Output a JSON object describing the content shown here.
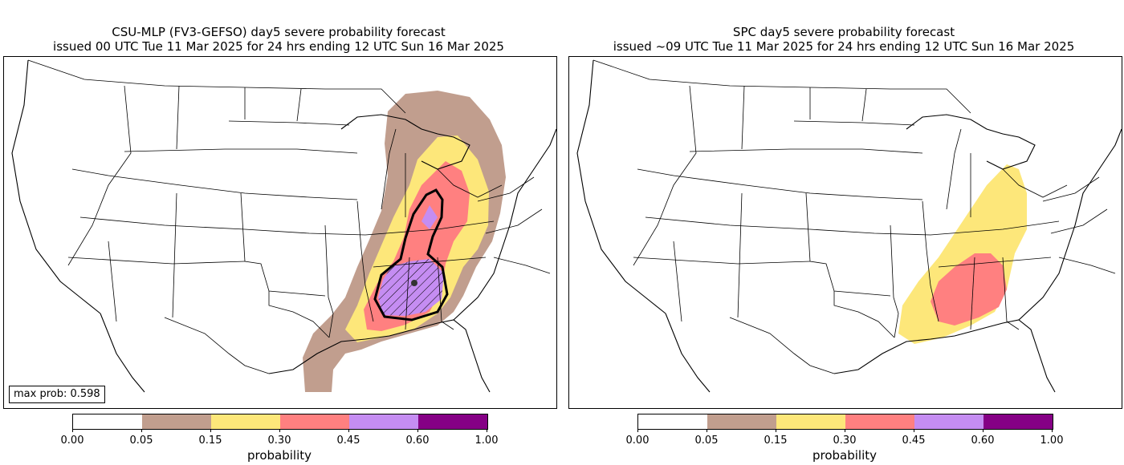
{
  "left_panel": {
    "title_line1": "CSU-MLP (FV3-GEFSO) day5 severe probability forecast",
    "title_line2": "issued 00 UTC Tue 11 Mar 2025 for 24 hrs ending 12 UTC Sun 16 Mar 2025",
    "max_prob_text": "max prob: 0.598",
    "colorbar_label": "probability",
    "ticks": [
      "0.00",
      "0.05",
      "0.15",
      "0.30",
      "0.45",
      "0.60",
      "1.00"
    ]
  },
  "right_panel": {
    "title_line1": "SPC day5 severe probability forecast",
    "title_line2": "issued ~09 UTC Tue 11 Mar 2025 for 24 hrs ending 12 UTC Sun 16 Mar 2025",
    "colorbar_label": "probability",
    "ticks": [
      "0.00",
      "0.05",
      "0.15",
      "0.30",
      "0.45",
      "0.60",
      "1.00"
    ]
  },
  "colors": {
    "p000": "#ffffff",
    "p005": "#c19e8e",
    "p015": "#fde77a",
    "p030": "#ff8080",
    "p045": "#c58df2",
    "p060": "#850085",
    "outline": "#000000"
  }
}
